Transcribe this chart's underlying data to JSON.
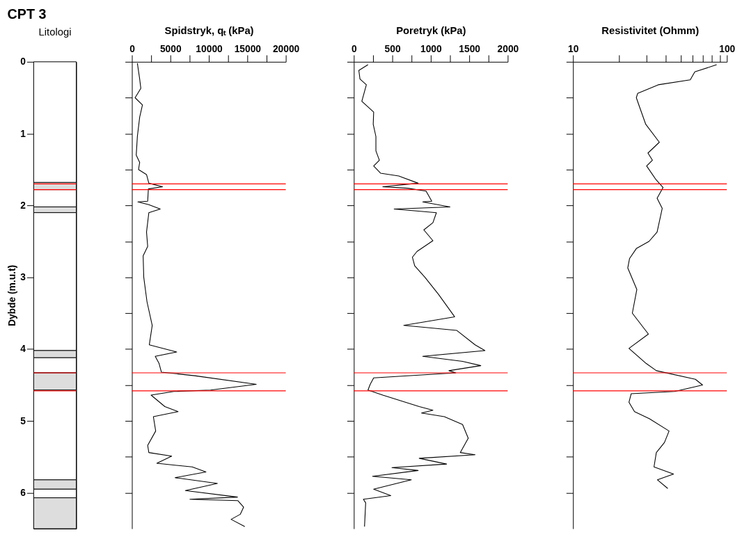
{
  "chart_data": [
    {
      "type": "bar",
      "stacked": true,
      "title": "Litologi",
      "annotations": [
        "CPT 3"
      ],
      "ylabel": "Dybde (m.u.t)",
      "ylim": [
        6.5,
        0
      ],
      "yticks": [
        0,
        1,
        2,
        3,
        4,
        5,
        6
      ],
      "tick_labels": "y",
      "categories": [
        null
      ],
      "series": [
        {
          "color": "#ffffff",
          "values": [
            1.68
          ]
        },
        {
          "color": "#dddddd",
          "values": [
            0.1
          ]
        },
        {
          "color": "#ffffff",
          "values": [
            0.24
          ]
        },
        {
          "color": "#dddddd",
          "values": [
            0.08
          ]
        },
        {
          "color": "#ffffff",
          "values": [
            1.92
          ]
        },
        {
          "color": "#dddddd",
          "values": [
            0.1
          ]
        },
        {
          "color": "#ffffff",
          "values": [
            0.21
          ]
        },
        {
          "color": "#dddddd",
          "values": [
            0.24
          ]
        },
        {
          "color": "#ffffff",
          "values": [
            1.25
          ]
        },
        {
          "color": "#dddddd",
          "values": [
            0.13
          ]
        },
        {
          "color": "#ffffff",
          "values": [
            0.12
          ]
        },
        {
          "color": "#dddddd",
          "values": [
            0.43
          ]
        }
      ],
      "ref_lines": [
        {
          "axis": "y",
          "value": 1.7,
          "color": "#ff0000"
        },
        {
          "axis": "y",
          "value": 1.78,
          "color": "#ff0000"
        },
        {
          "axis": "y",
          "value": 4.33,
          "color": "#ff0000"
        },
        {
          "axis": "y",
          "value": 4.58,
          "color": "#ff0000"
        }
      ]
    },
    {
      "type": "line",
      "xlabel": "Spidstryk, qₜ (kPa)",
      "xlim": [
        0,
        20000
      ],
      "xticks": [
        0,
        {
          "value": 2500,
          "label": null
        },
        5000,
        {
          "value": 7500,
          "label": null
        },
        10000,
        {
          "value": 12500,
          "label": null
        },
        15000,
        {
          "value": 17500,
          "label": null
        },
        20000
      ],
      "ylim": [
        6.5,
        0
      ],
      "yticks": [
        0,
        0.5,
        1,
        1.5,
        2,
        2.5,
        3,
        3.5,
        4,
        4.5,
        5,
        5.5,
        6
      ],
      "tick_labels": "x",
      "series": [
        {
          "color": "#000000",
          "x": [
            710,
            1010,
            1160,
            415,
            1370,
            1010,
            710,
            560,
            1010,
            860,
            1900,
            2200,
            3980,
            2140,
            2050,
            770,
            2200,
            3680,
            2200,
            1900,
            2050,
            1460,
            1540,
            1960,
            2640,
            2260,
            5820,
            3030,
            3530,
            3830,
            8140,
            16160,
            10220,
            5460,
            2490,
            4280,
            6000,
            2790,
            3090,
            2050,
            2200,
            5170,
            3240,
            7840,
            9620,
            5610,
            11110,
            6950,
            13720,
            7540,
            13780,
            14520,
            14080,
            12890,
            14670
          ],
          "values": [
            0.02,
            0.24,
            0.37,
            0.5,
            0.6,
            0.77,
            1.04,
            1.3,
            1.4,
            1.5,
            1.57,
            1.69,
            1.74,
            1.77,
            1.94,
            1.95,
            1.99,
            2.05,
            2.1,
            2.37,
            2.57,
            2.7,
            3.0,
            3.34,
            3.67,
            3.94,
            4.04,
            4.1,
            4.2,
            4.32,
            4.37,
            4.49,
            4.57,
            4.59,
            4.64,
            4.8,
            4.87,
            4.94,
            5.14,
            5.34,
            5.44,
            5.49,
            5.59,
            5.64,
            5.71,
            5.79,
            5.87,
            5.97,
            6.06,
            6.09,
            6.11,
            6.2,
            6.3,
            6.37,
            6.47
          ]
        }
      ],
      "ref_lines": [
        {
          "axis": "y",
          "value": 1.7,
          "color": "#ff0000"
        },
        {
          "axis": "y",
          "value": 1.78,
          "color": "#ff0000"
        },
        {
          "axis": "y",
          "value": 4.33,
          "color": "#ff0000"
        },
        {
          "axis": "y",
          "value": 4.58,
          "color": "#ff0000"
        }
      ]
    },
    {
      "type": "line",
      "xlabel": "Poretryk (kPa)",
      "xlim": [
        0,
        2000
      ],
      "xticks": [
        0,
        {
          "value": 250,
          "label": null
        },
        500,
        {
          "value": 750,
          "label": null
        },
        1000,
        {
          "value": 1250,
          "label": null
        },
        1500,
        {
          "value": 1750,
          "label": null
        },
        2000
      ],
      "ylim": [
        6.5,
        0
      ],
      "yticks": [
        0,
        0.5,
        1,
        1.5,
        2,
        2.5,
        3,
        3.5,
        4,
        4.5,
        5,
        5.5,
        6
      ],
      "tick_labels": "x",
      "series": [
        {
          "color": "#000000",
          "x": [
            184,
            65,
            80,
            163,
            104,
            258,
            252,
            287,
            287,
            332,
            258,
            347,
            584,
            836,
            376,
            702,
            939,
            1013,
            895,
            1250,
            524,
            1073,
            1028,
            910,
            1028,
            821,
            761,
            791,
            924,
            1102,
            1310,
            649,
            1339,
            1576,
            1704,
            895,
            1413,
            1650,
            1236,
            1325,
            258,
            213,
            184,
            376,
            850,
            1028,
            880,
            1176,
            1413,
            1487,
            1384,
            1576,
            850,
            1206,
            495,
            836,
            243,
            747,
            258,
            480,
            124,
            154,
            139
          ],
          "values": [
            0.04,
            0.12,
            0.24,
            0.32,
            0.55,
            0.7,
            0.87,
            1.04,
            1.24,
            1.37,
            1.45,
            1.55,
            1.59,
            1.69,
            1.74,
            1.76,
            1.8,
            1.94,
            1.95,
            2.02,
            2.05,
            2.1,
            2.24,
            2.34,
            2.49,
            2.64,
            2.72,
            2.84,
            3.0,
            3.24,
            3.55,
            3.67,
            3.74,
            3.94,
            4.02,
            4.1,
            4.17,
            4.23,
            4.3,
            4.33,
            4.4,
            4.49,
            4.57,
            4.64,
            4.8,
            4.85,
            4.89,
            4.94,
            5.05,
            5.24,
            5.44,
            5.47,
            5.52,
            5.6,
            5.65,
            5.69,
            5.77,
            5.82,
            5.95,
            6.04,
            6.09,
            6.14,
            6.47
          ]
        }
      ],
      "ref_lines": [
        {
          "axis": "y",
          "value": 1.7,
          "color": "#ff0000"
        },
        {
          "axis": "y",
          "value": 1.78,
          "color": "#ff0000"
        },
        {
          "axis": "y",
          "value": 4.33,
          "color": "#ff0000"
        },
        {
          "axis": "y",
          "value": 4.58,
          "color": "#ff0000"
        }
      ]
    },
    {
      "type": "line",
      "xlabel": "Resistivitet (Ohmm)",
      "log": "x",
      "xlim": [
        10,
        100
      ],
      "xticks": [
        10,
        {
          "value": 20,
          "label": null
        },
        {
          "value": 30,
          "label": null
        },
        {
          "value": 40,
          "label": null
        },
        {
          "value": 50,
          "label": null
        },
        {
          "value": 60,
          "label": null
        },
        {
          "value": 70,
          "label": null
        },
        {
          "value": 80,
          "label": null
        },
        {
          "value": 90,
          "label": null
        },
        100
      ],
      "ylim": [
        6.5,
        0
      ],
      "yticks": [
        0,
        0.5,
        1,
        1.5,
        2,
        2.5,
        3,
        3.5,
        4,
        4.5,
        5,
        5.5,
        6
      ],
      "tick_labels": "x",
      "series": [
        {
          "color": "#000000",
          "x": [
            85.8,
            61.9,
            57.8,
            35.8,
            26.3,
            25.8,
            27.2,
            29.7,
            36.4,
            30.7,
            32.8,
            30.1,
            34.6,
            38.5,
            35.2,
            38.0,
            35.2,
            31.2,
            25.8,
            23.3,
            22.7,
            26.0,
            24.3,
            30.9,
            23.1,
            29.9,
            34.8,
            62.4,
            69.5,
            45.8,
            23.9,
            23.1,
            25.1,
            31.4,
            42.1,
            39.3,
            34.8,
            33.6,
            45.0,
            35.4,
            41.3
          ],
          "values": [
            0.04,
            0.14,
            0.25,
            0.32,
            0.44,
            0.5,
            0.64,
            0.87,
            1.12,
            1.27,
            1.37,
            1.45,
            1.64,
            1.75,
            1.9,
            2.04,
            2.37,
            2.5,
            2.6,
            2.74,
            2.87,
            3.17,
            3.5,
            3.79,
            3.99,
            4.2,
            4.3,
            4.42,
            4.5,
            4.59,
            4.62,
            4.74,
            4.87,
            4.97,
            5.14,
            5.3,
            5.44,
            5.64,
            5.74,
            5.82,
            5.94
          ]
        }
      ],
      "ref_lines": [
        {
          "axis": "y",
          "value": 1.7,
          "color": "#ff0000"
        },
        {
          "axis": "y",
          "value": 1.78,
          "color": "#ff0000"
        },
        {
          "axis": "y",
          "value": 4.33,
          "color": "#ff0000"
        },
        {
          "axis": "y",
          "value": 4.58,
          "color": "#ff0000"
        }
      ]
    }
  ]
}
